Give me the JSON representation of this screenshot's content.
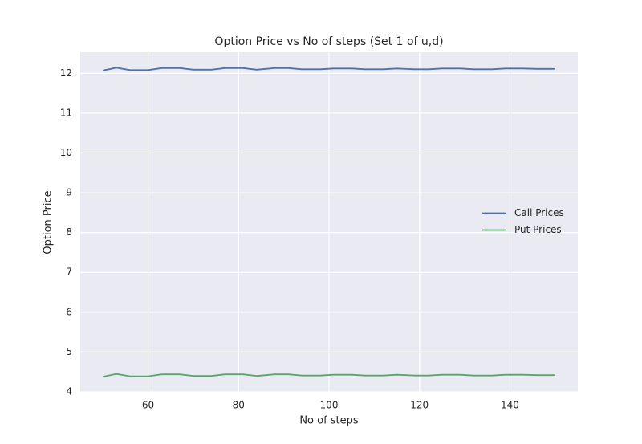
{
  "chart_data": {
    "type": "line",
    "title": "Option Price vs No of steps (Set 1 of u,d)",
    "x_label": "No of steps",
    "y_label": "Option Price",
    "x": [
      50,
      53,
      56,
      60,
      63,
      67,
      70,
      74,
      77,
      81,
      84,
      88,
      91,
      94,
      98,
      101,
      105,
      108,
      112,
      115,
      119,
      122,
      125,
      129,
      132,
      136,
      139,
      143,
      146,
      150
    ],
    "series": [
      {
        "name": "Call Prices",
        "color": "#4c72b0",
        "values": [
          12.07,
          12.14,
          12.08,
          12.08,
          12.13,
          12.13,
          12.09,
          12.09,
          12.13,
          12.13,
          12.09,
          12.13,
          12.13,
          12.1,
          12.1,
          12.12,
          12.12,
          12.1,
          12.1,
          12.12,
          12.1,
          12.1,
          12.12,
          12.12,
          12.1,
          12.1,
          12.12,
          12.12,
          12.11,
          12.11
        ]
      },
      {
        "name": "Put Prices",
        "color": "#55a868",
        "values": [
          4.38,
          4.45,
          4.39,
          4.39,
          4.44,
          4.44,
          4.4,
          4.4,
          4.44,
          4.44,
          4.4,
          4.44,
          4.44,
          4.41,
          4.41,
          4.43,
          4.43,
          4.41,
          4.41,
          4.43,
          4.41,
          4.41,
          4.43,
          4.43,
          4.41,
          4.41,
          4.43,
          4.43,
          4.42,
          4.42
        ]
      }
    ],
    "xlim": [
      45,
      155
    ],
    "xticks": [
      60,
      80,
      100,
      120,
      140
    ],
    "ylim": [
      4,
      12.53
    ],
    "yticks": [
      4,
      5,
      6,
      7,
      8,
      9,
      10,
      11,
      12
    ],
    "grid": true,
    "legend": "center right"
  }
}
